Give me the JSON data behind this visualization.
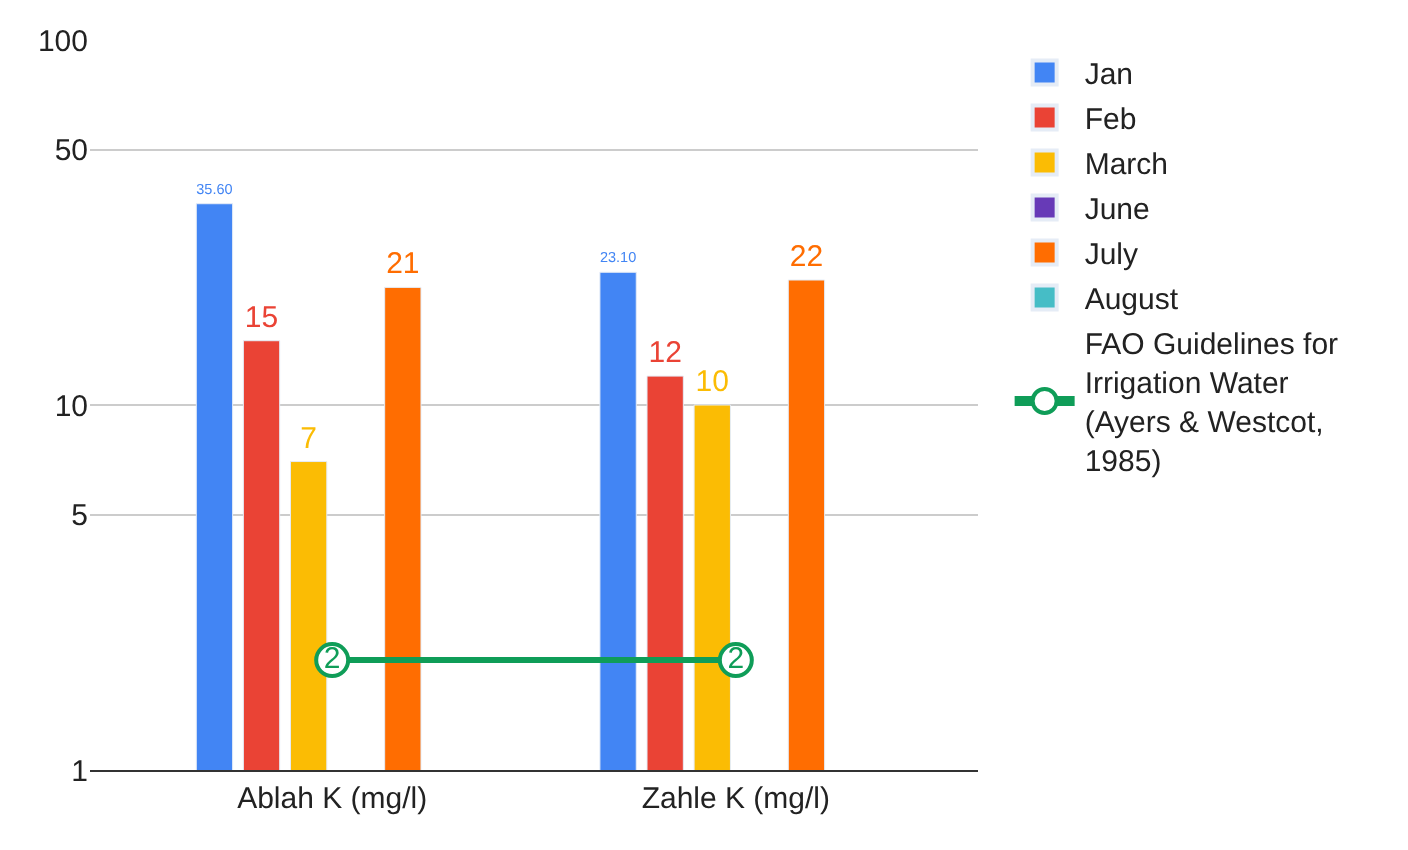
{
  "chart_data": {
    "type": "bar",
    "categories": [
      "Ablah K (mg/l)",
      "Zahle K (mg/l)"
    ],
    "series": [
      {
        "name": "Jan",
        "color": "#4285f4",
        "values": [
          35.6,
          23.1
        ],
        "value_labels": [
          "35.60",
          "23.10"
        ]
      },
      {
        "name": "Feb",
        "color": "#ea4335",
        "values": [
          15,
          12
        ],
        "value_labels": [
          "15",
          "12"
        ]
      },
      {
        "name": "March",
        "color": "#fbbc04",
        "values": [
          7,
          10
        ],
        "value_labels": [
          "7",
          "10"
        ]
      },
      {
        "name": "June",
        "color": "#673ab7",
        "values": [
          null,
          null
        ]
      },
      {
        "name": "July",
        "color": "#ff6d01",
        "values": [
          21,
          22
        ],
        "value_labels": [
          "21",
          "22"
        ]
      },
      {
        "name": "August",
        "color": "#46bdc6",
        "values": [
          null,
          null
        ]
      },
      {
        "name": "FAO Guidelines for Irrigation Water (Ayers & Westcot, 1985)",
        "type": "line",
        "color": "#0f9d58",
        "values": [
          2,
          2
        ],
        "value_labels": [
          "2",
          "2"
        ],
        "marker": "circle"
      }
    ],
    "log": "y",
    "ylim": [
      1,
      100
    ],
    "yticks": [
      1,
      5,
      10,
      50,
      100
    ],
    "grid": "y",
    "legend": "right"
  }
}
